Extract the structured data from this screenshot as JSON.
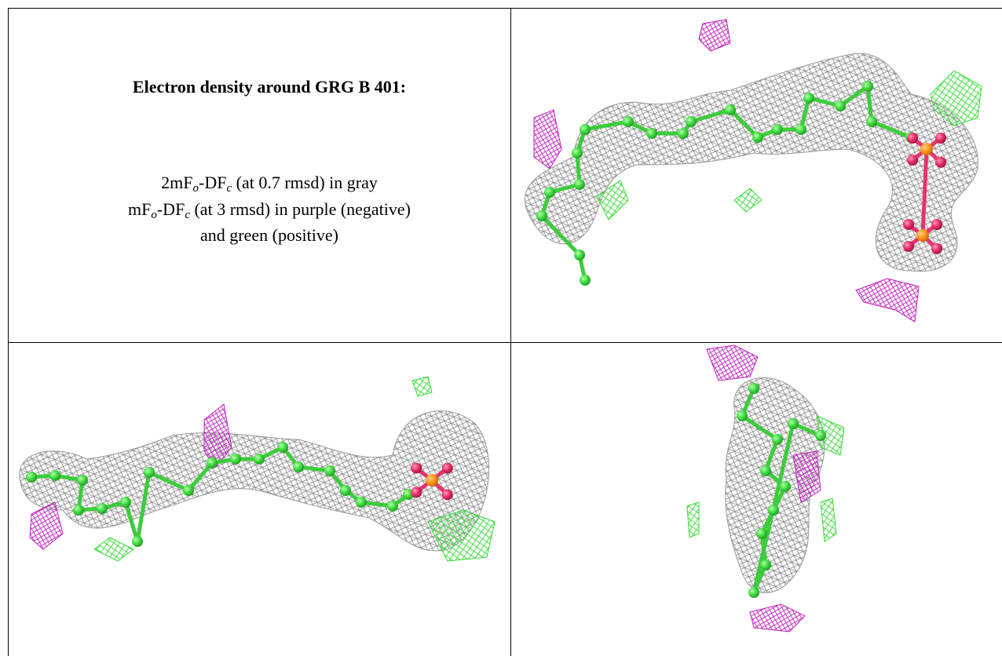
{
  "title": "Electron density around GRG B 401:",
  "legend": [
    [
      "2mF",
      "o",
      "-DF",
      "c",
      " (at 0.7 rmsd) in gray"
    ],
    [
      "mF",
      "o",
      "-DF",
      "c",
      " (at 3 rmsd) in purple (negative)"
    ],
    [
      "and green (positive)"
    ]
  ]
}
